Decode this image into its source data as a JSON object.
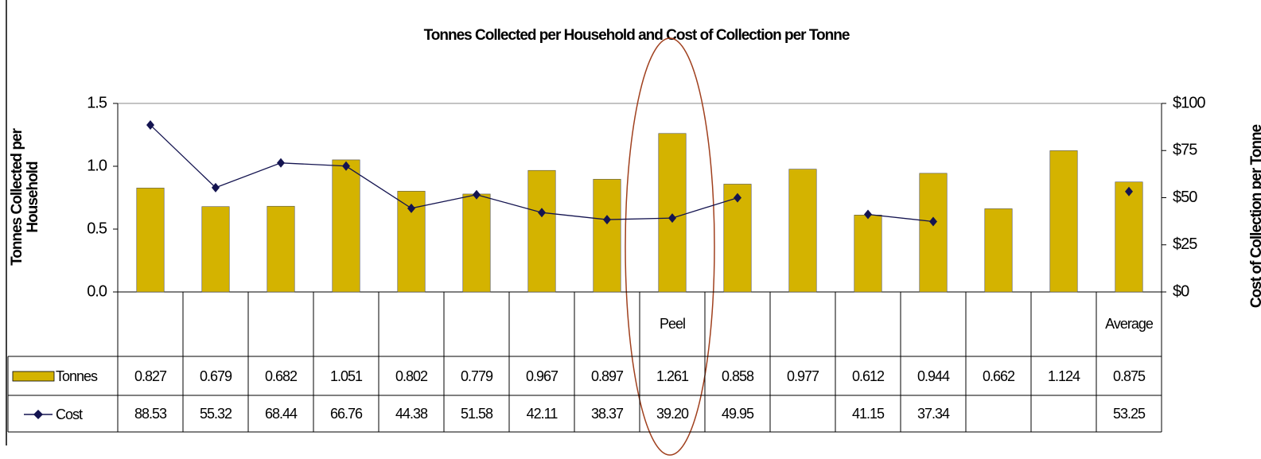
{
  "chart_data": {
    "type": "bar-line",
    "title": "Tonnes Collected per Household and Cost of Collection per Tonne",
    "ylabel": "Tonnes Collected per Household",
    "y2label": "Cost of Collection per Tonne",
    "categories": [
      null,
      null,
      null,
      null,
      null,
      null,
      null,
      null,
      "Peel",
      null,
      null,
      null,
      null,
      null,
      null,
      "Average"
    ],
    "series": [
      {
        "name": "Tonnes",
        "type": "bar",
        "color": "#d4b300",
        "values": [
          0.827,
          0.679,
          0.682,
          1.051,
          0.802,
          0.779,
          0.967,
          0.897,
          1.261,
          0.858,
          0.977,
          0.612,
          0.944,
          0.662,
          1.124,
          0.875
        ]
      },
      {
        "name": "Cost",
        "type": "line",
        "axis": "y2",
        "color": "#141450",
        "values": [
          88.53,
          55.32,
          68.44,
          66.76,
          44.38,
          51.58,
          42.11,
          38.37,
          39.2,
          49.95,
          null,
          41.15,
          37.34,
          null,
          null,
          53.25
        ],
        "value_labels": [
          "88.53",
          "55.32",
          "68.44",
          "66.76",
          "44.38",
          "51.58",
          "42.11",
          "38.37",
          "39.20",
          "49.95",
          null,
          "41.15",
          "37.34",
          null,
          null,
          "53.25"
        ]
      }
    ],
    "ylim": [
      0,
      1.5
    ],
    "yticks": [
      {
        "value": 0,
        "label": "0.0"
      },
      {
        "value": 0.5,
        "label": "0.5"
      },
      {
        "value": 1,
        "label": "1.0"
      },
      {
        "value": 1.5,
        "label": "1.5"
      }
    ],
    "y2lim": [
      0,
      100
    ],
    "y2ticks": [
      {
        "value": 0,
        "label": "$0"
      },
      {
        "value": 25,
        "label": "$25"
      },
      {
        "value": 50,
        "label": "$50"
      },
      {
        "value": 75,
        "label": "$75"
      },
      {
        "value": 100,
        "label": "$100"
      }
    ]
  }
}
